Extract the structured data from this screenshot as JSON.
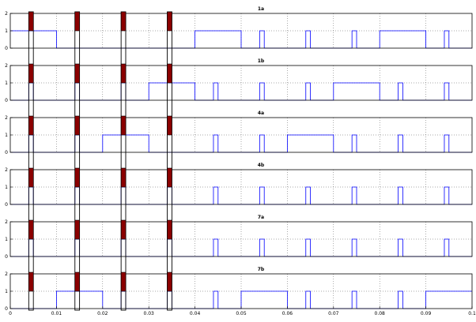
{
  "chart_data": [
    {
      "type": "line",
      "title": "1a",
      "xlim": [
        0,
        0.1
      ],
      "ylim": [
        0,
        2
      ],
      "yticks": [
        0,
        1,
        2
      ],
      "grid": true,
      "series": [
        {
          "color": "#0000ff",
          "points": [
            [
              0,
              1
            ],
            [
              0.01,
              1
            ],
            [
              0.01,
              0
            ],
            [
              0.04,
              0
            ],
            [
              0.04,
              1
            ],
            [
              0.05,
              1
            ],
            [
              0.05,
              0
            ],
            [
              0.054,
              0
            ],
            [
              0.054,
              1
            ],
            [
              0.055,
              1
            ],
            [
              0.055,
              0
            ],
            [
              0.064,
              0
            ],
            [
              0.064,
              1
            ],
            [
              0.065,
              1
            ],
            [
              0.065,
              0
            ],
            [
              0.074,
              0
            ],
            [
              0.074,
              1
            ],
            [
              0.075,
              1
            ],
            [
              0.075,
              0
            ],
            [
              0.08,
              0
            ],
            [
              0.08,
              1
            ],
            [
              0.09,
              1
            ],
            [
              0.09,
              0
            ],
            [
              0.094,
              0
            ],
            [
              0.094,
              1
            ],
            [
              0.095,
              1
            ],
            [
              0.095,
              0
            ],
            [
              0.1,
              0
            ]
          ]
        }
      ]
    },
    {
      "type": "line",
      "title": "1b",
      "xlim": [
        0,
        0.1
      ],
      "ylim": [
        0,
        2
      ],
      "yticks": [
        0,
        1,
        2
      ],
      "grid": true,
      "series": [
        {
          "color": "#0000ff",
          "points": [
            [
              0,
              0
            ],
            [
              0.004,
              0
            ],
            [
              0.004,
              1
            ],
            [
              0.005,
              1
            ],
            [
              0.005,
              0
            ],
            [
              0.014,
              0
            ],
            [
              0.014,
              1
            ],
            [
              0.015,
              1
            ],
            [
              0.015,
              0
            ],
            [
              0.024,
              0
            ],
            [
              0.024,
              1
            ],
            [
              0.025,
              1
            ],
            [
              0.025,
              0
            ],
            [
              0.03,
              0
            ],
            [
              0.03,
              1
            ],
            [
              0.04,
              1
            ],
            [
              0.04,
              0
            ],
            [
              0.044,
              0
            ],
            [
              0.044,
              1
            ],
            [
              0.045,
              1
            ],
            [
              0.045,
              0
            ],
            [
              0.054,
              0
            ],
            [
              0.054,
              1
            ],
            [
              0.055,
              1
            ],
            [
              0.055,
              0
            ],
            [
              0.064,
              0
            ],
            [
              0.064,
              1
            ],
            [
              0.065,
              1
            ],
            [
              0.065,
              0
            ],
            [
              0.07,
              0
            ],
            [
              0.07,
              1
            ],
            [
              0.08,
              1
            ],
            [
              0.08,
              0
            ],
            [
              0.084,
              0
            ],
            [
              0.084,
              1
            ],
            [
              0.085,
              1
            ],
            [
              0.085,
              0
            ],
            [
              0.094,
              0
            ],
            [
              0.094,
              1
            ],
            [
              0.095,
              1
            ],
            [
              0.095,
              0
            ],
            [
              0.1,
              0
            ]
          ]
        }
      ]
    },
    {
      "type": "line",
      "title": "4a",
      "xlim": [
        0,
        0.1
      ],
      "ylim": [
        0,
        2
      ],
      "yticks": [
        0,
        1,
        2
      ],
      "grid": true,
      "series": [
        {
          "color": "#0000ff",
          "points": [
            [
              0,
              0
            ],
            [
              0.004,
              0
            ],
            [
              0.004,
              1
            ],
            [
              0.005,
              1
            ],
            [
              0.005,
              0
            ],
            [
              0.014,
              0
            ],
            [
              0.014,
              1
            ],
            [
              0.015,
              1
            ],
            [
              0.015,
              0
            ],
            [
              0.02,
              0
            ],
            [
              0.02,
              1
            ],
            [
              0.03,
              1
            ],
            [
              0.03,
              0
            ],
            [
              0.044,
              0
            ],
            [
              0.044,
              1
            ],
            [
              0.045,
              1
            ],
            [
              0.045,
              0
            ],
            [
              0.054,
              0
            ],
            [
              0.054,
              1
            ],
            [
              0.055,
              1
            ],
            [
              0.055,
              0
            ],
            [
              0.06,
              0
            ],
            [
              0.06,
              1
            ],
            [
              0.07,
              1
            ],
            [
              0.07,
              0
            ],
            [
              0.074,
              0
            ],
            [
              0.074,
              1
            ],
            [
              0.075,
              1
            ],
            [
              0.075,
              0
            ],
            [
              0.084,
              0
            ],
            [
              0.084,
              1
            ],
            [
              0.085,
              1
            ],
            [
              0.085,
              0
            ],
            [
              0.094,
              0
            ],
            [
              0.094,
              1
            ],
            [
              0.095,
              1
            ],
            [
              0.095,
              0
            ],
            [
              0.1,
              0
            ]
          ]
        }
      ]
    },
    {
      "type": "line",
      "title": "4b",
      "xlim": [
        0,
        0.1
      ],
      "ylim": [
        0,
        2
      ],
      "yticks": [
        0,
        1,
        2
      ],
      "grid": true,
      "series": [
        {
          "color": "#0000ff",
          "points": [
            [
              0,
              0
            ],
            [
              0.004,
              0
            ],
            [
              0.004,
              1
            ],
            [
              0.005,
              1
            ],
            [
              0.005,
              0
            ],
            [
              0.014,
              0
            ],
            [
              0.014,
              1
            ],
            [
              0.015,
              1
            ],
            [
              0.015,
              0
            ],
            [
              0.024,
              0
            ],
            [
              0.024,
              1
            ],
            [
              0.025,
              1
            ],
            [
              0.025,
              0
            ],
            [
              0.034,
              0
            ],
            [
              0.034,
              1
            ],
            [
              0.035,
              1
            ],
            [
              0.035,
              0
            ],
            [
              0.044,
              0
            ],
            [
              0.044,
              1
            ],
            [
              0.045,
              1
            ],
            [
              0.045,
              0
            ],
            [
              0.054,
              0
            ],
            [
              0.054,
              1
            ],
            [
              0.055,
              1
            ],
            [
              0.055,
              0
            ],
            [
              0.064,
              0
            ],
            [
              0.064,
              1
            ],
            [
              0.065,
              1
            ],
            [
              0.065,
              0
            ],
            [
              0.074,
              0
            ],
            [
              0.074,
              1
            ],
            [
              0.075,
              1
            ],
            [
              0.075,
              0
            ],
            [
              0.084,
              0
            ],
            [
              0.084,
              1
            ],
            [
              0.085,
              1
            ],
            [
              0.085,
              0
            ],
            [
              0.094,
              0
            ],
            [
              0.094,
              1
            ],
            [
              0.095,
              1
            ],
            [
              0.095,
              0
            ],
            [
              0.1,
              0
            ]
          ]
        }
      ]
    },
    {
      "type": "line",
      "title": "7a",
      "xlim": [
        0,
        0.1
      ],
      "ylim": [
        0,
        2
      ],
      "yticks": [
        0,
        1,
        2
      ],
      "grid": true,
      "series": [
        {
          "color": "#0000ff",
          "points": [
            [
              0,
              0
            ],
            [
              0.004,
              0
            ],
            [
              0.004,
              1
            ],
            [
              0.005,
              1
            ],
            [
              0.005,
              0
            ],
            [
              0.014,
              0
            ],
            [
              0.014,
              1
            ],
            [
              0.015,
              1
            ],
            [
              0.015,
              0
            ],
            [
              0.024,
              0
            ],
            [
              0.024,
              1
            ],
            [
              0.025,
              1
            ],
            [
              0.025,
              0
            ],
            [
              0.034,
              0
            ],
            [
              0.034,
              1
            ],
            [
              0.035,
              1
            ],
            [
              0.035,
              0
            ],
            [
              0.044,
              0
            ],
            [
              0.044,
              1
            ],
            [
              0.045,
              1
            ],
            [
              0.045,
              0
            ],
            [
              0.054,
              0
            ],
            [
              0.054,
              1
            ],
            [
              0.055,
              1
            ],
            [
              0.055,
              0
            ],
            [
              0.064,
              0
            ],
            [
              0.064,
              1
            ],
            [
              0.065,
              1
            ],
            [
              0.065,
              0
            ],
            [
              0.074,
              0
            ],
            [
              0.074,
              1
            ],
            [
              0.075,
              1
            ],
            [
              0.075,
              0
            ],
            [
              0.084,
              0
            ],
            [
              0.084,
              1
            ],
            [
              0.085,
              1
            ],
            [
              0.085,
              0
            ],
            [
              0.094,
              0
            ],
            [
              0.094,
              1
            ],
            [
              0.095,
              1
            ],
            [
              0.095,
              0
            ],
            [
              0.1,
              0
            ]
          ]
        }
      ]
    },
    {
      "type": "line",
      "title": "7b",
      "xlim": [
        0,
        0.1
      ],
      "ylim": [
        0,
        2
      ],
      "yticks": [
        0,
        1,
        2
      ],
      "xticks": [
        "0",
        "0.01",
        "0.02",
        "0.03",
        "0.04",
        "0.05",
        "0.06",
        "0.07",
        "0.08",
        "0.09",
        "0.1"
      ],
      "grid": true,
      "series": [
        {
          "color": "#0000ff",
          "points": [
            [
              0,
              0
            ],
            [
              0.01,
              0
            ],
            [
              0.01,
              1
            ],
            [
              0.02,
              1
            ],
            [
              0.02,
              0
            ],
            [
              0.024,
              0
            ],
            [
              0.024,
              1
            ],
            [
              0.025,
              1
            ],
            [
              0.025,
              0
            ],
            [
              0.034,
              0
            ],
            [
              0.034,
              1
            ],
            [
              0.035,
              1
            ],
            [
              0.035,
              0
            ],
            [
              0.044,
              0
            ],
            [
              0.044,
              1
            ],
            [
              0.045,
              1
            ],
            [
              0.045,
              0
            ],
            [
              0.05,
              0
            ],
            [
              0.05,
              1
            ],
            [
              0.06,
              1
            ],
            [
              0.06,
              0
            ],
            [
              0.064,
              0
            ],
            [
              0.064,
              1
            ],
            [
              0.065,
              1
            ],
            [
              0.065,
              0
            ],
            [
              0.074,
              0
            ],
            [
              0.074,
              1
            ],
            [
              0.075,
              1
            ],
            [
              0.075,
              0
            ],
            [
              0.084,
              0
            ],
            [
              0.084,
              1
            ],
            [
              0.085,
              1
            ],
            [
              0.085,
              0
            ],
            [
              0.09,
              0
            ],
            [
              0.09,
              1
            ],
            [
              0.1,
              1
            ]
          ]
        }
      ]
    }
  ],
  "highlights": {
    "fill_color": "#8b0000",
    "outline_color": "#000000",
    "intervals": [
      [
        0.004,
        0.005
      ],
      [
        0.014,
        0.015
      ],
      [
        0.024,
        0.025
      ],
      [
        0.034,
        0.035
      ]
    ]
  }
}
